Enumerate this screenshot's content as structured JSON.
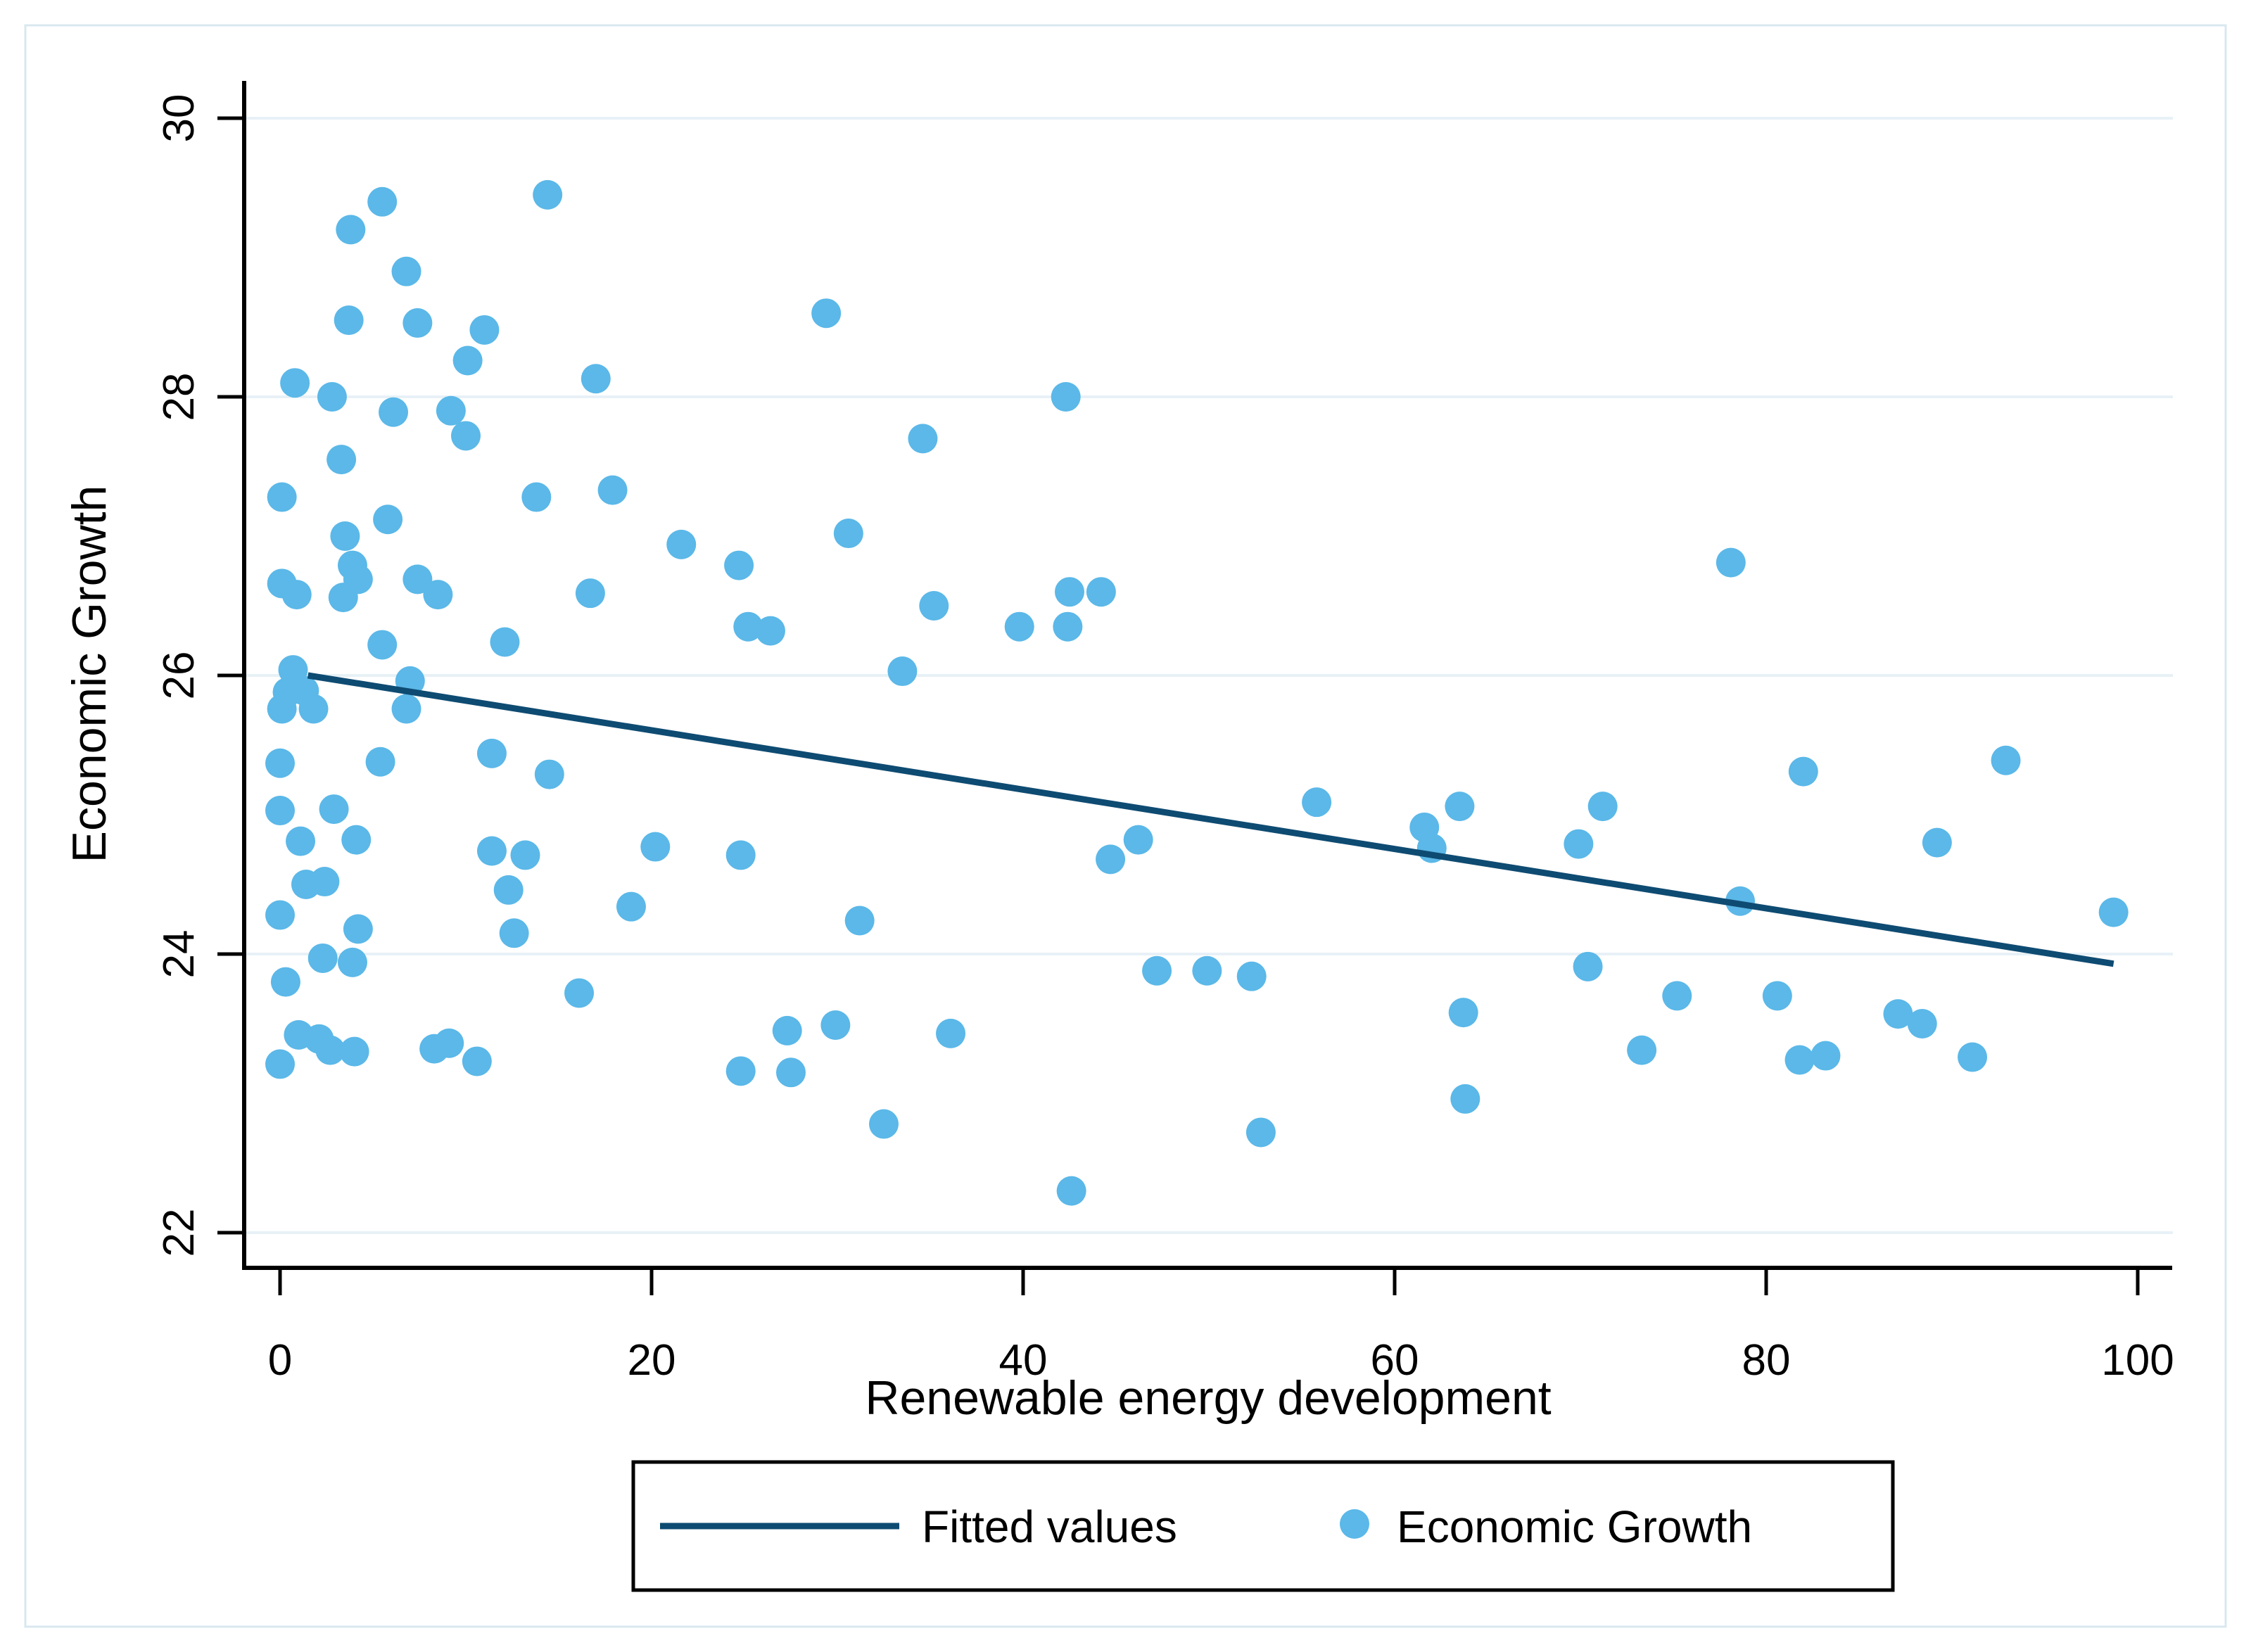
{
  "figure": {
    "background": "#ffffff",
    "border_color": "#d9e8ef"
  },
  "chart_data": {
    "type": "scatter",
    "title": "",
    "xlabel": "Renewable energy development",
    "ylabel": "Economic Growth",
    "xlim": [
      -2,
      102
    ],
    "ylim": [
      21.75,
      30.27
    ],
    "xticks": [
      "0",
      "20",
      "40",
      "60",
      "80",
      "100"
    ],
    "xtick_values": [
      0,
      20,
      40,
      60,
      80,
      100
    ],
    "yticks": [
      "30",
      "28",
      "26",
      "24",
      "22"
    ],
    "ytick_values": [
      30,
      28,
      26,
      24,
      22
    ],
    "grid": "horizontal",
    "gridline_color": "#e7f1f6",
    "legend_position": "bottom",
    "series": [
      {
        "name": "Economic Growth",
        "type": "scatter",
        "color": "#5bb8e8",
        "marker_radius": 21,
        "points": [
          [
            5.5,
            29.4
          ],
          [
            3.8,
            29.2
          ],
          [
            14.4,
            29.45
          ],
          [
            6.8,
            28.9
          ],
          [
            3.7,
            28.55
          ],
          [
            7.4,
            28.53
          ],
          [
            11.0,
            28.48
          ],
          [
            10.1,
            28.26
          ],
          [
            17.0,
            28.13
          ],
          [
            0.8,
            28.1
          ],
          [
            2.8,
            28.0
          ],
          [
            42.3,
            28.0
          ],
          [
            29.4,
            28.6
          ],
          [
            6.1,
            27.89
          ],
          [
            9.2,
            27.9
          ],
          [
            10.0,
            27.72
          ],
          [
            3.3,
            27.55
          ],
          [
            0.1,
            27.28
          ],
          [
            13.8,
            27.28
          ],
          [
            17.9,
            27.33
          ],
          [
            34.6,
            27.7
          ],
          [
            5.8,
            27.12
          ],
          [
            3.5,
            27.0
          ],
          [
            30.6,
            27.02
          ],
          [
            21.6,
            26.94
          ],
          [
            3.9,
            26.79
          ],
          [
            24.7,
            26.79
          ],
          [
            4.2,
            26.69
          ],
          [
            7.4,
            26.69
          ],
          [
            0.1,
            26.66
          ],
          [
            0.9,
            26.58
          ],
          [
            3.4,
            26.56
          ],
          [
            8.5,
            26.58
          ],
          [
            16.7,
            26.59
          ],
          [
            78.1,
            26.81
          ],
          [
            42.5,
            26.6
          ],
          [
            44.2,
            26.6
          ],
          [
            35.2,
            26.5
          ],
          [
            39.8,
            26.35
          ],
          [
            42.4,
            26.35
          ],
          [
            25.2,
            26.35
          ],
          [
            26.4,
            26.32
          ],
          [
            12.1,
            26.24
          ],
          [
            5.5,
            26.22
          ],
          [
            33.5,
            26.03
          ],
          [
            0.7,
            26.04
          ],
          [
            0.4,
            25.88
          ],
          [
            1.3,
            25.89
          ],
          [
            7.0,
            25.96
          ],
          [
            0.1,
            25.76
          ],
          [
            1.8,
            25.76
          ],
          [
            6.8,
            25.76
          ],
          [
            0.0,
            25.37
          ],
          [
            5.4,
            25.38
          ],
          [
            11.4,
            25.44
          ],
          [
            14.5,
            25.29
          ],
          [
            55.8,
            25.09
          ],
          [
            63.5,
            25.06
          ],
          [
            71.2,
            25.06
          ],
          [
            92.9,
            25.39
          ],
          [
            82.0,
            25.31
          ],
          [
            0.0,
            25.03
          ],
          [
            2.9,
            25.04
          ],
          [
            1.1,
            24.81
          ],
          [
            4.1,
            24.82
          ],
          [
            1.4,
            24.5
          ],
          [
            2.4,
            24.52
          ],
          [
            0.0,
            24.28
          ],
          [
            4.2,
            24.18
          ],
          [
            11.4,
            24.74
          ],
          [
            13.2,
            24.71
          ],
          [
            12.3,
            24.46
          ],
          [
            12.6,
            24.15
          ],
          [
            18.9,
            24.34
          ],
          [
            20.2,
            24.77
          ],
          [
            24.8,
            24.71
          ],
          [
            31.2,
            24.24
          ],
          [
            44.7,
            24.68
          ],
          [
            46.2,
            24.82
          ],
          [
            61.6,
            24.91
          ],
          [
            62.0,
            24.76
          ],
          [
            69.9,
            24.79
          ],
          [
            89.2,
            24.8
          ],
          [
            98.7,
            24.3
          ],
          [
            78.6,
            24.38
          ],
          [
            2.3,
            23.97
          ],
          [
            3.9,
            23.94
          ],
          [
            0.3,
            23.8
          ],
          [
            16.1,
            23.72
          ],
          [
            47.2,
            23.88
          ],
          [
            49.9,
            23.88
          ],
          [
            52.3,
            23.84
          ],
          [
            63.7,
            23.58
          ],
          [
            70.4,
            23.91
          ],
          [
            75.2,
            23.7
          ],
          [
            80.6,
            23.7
          ],
          [
            87.1,
            23.57
          ],
          [
            88.4,
            23.5
          ],
          [
            1.0,
            23.42
          ],
          [
            2.1,
            23.39
          ],
          [
            2.7,
            23.31
          ],
          [
            4.0,
            23.3
          ],
          [
            0.0,
            23.21
          ],
          [
            8.3,
            23.32
          ],
          [
            9.1,
            23.36
          ],
          [
            10.6,
            23.23
          ],
          [
            24.8,
            23.16
          ],
          [
            27.5,
            23.15
          ],
          [
            27.3,
            23.45
          ],
          [
            29.9,
            23.49
          ],
          [
            36.1,
            23.43
          ],
          [
            73.3,
            23.31
          ],
          [
            81.8,
            23.24
          ],
          [
            83.2,
            23.27
          ],
          [
            91.1,
            23.26
          ],
          [
            63.8,
            22.96
          ],
          [
            32.5,
            22.78
          ],
          [
            52.8,
            22.72
          ],
          [
            42.6,
            22.3
          ]
        ]
      },
      {
        "name": "Fitted values",
        "type": "line",
        "color": "#0e4b72",
        "line_width": 9,
        "points": [
          [
            1.5,
            26.0
          ],
          [
            98.7,
            23.93
          ]
        ]
      }
    ]
  }
}
